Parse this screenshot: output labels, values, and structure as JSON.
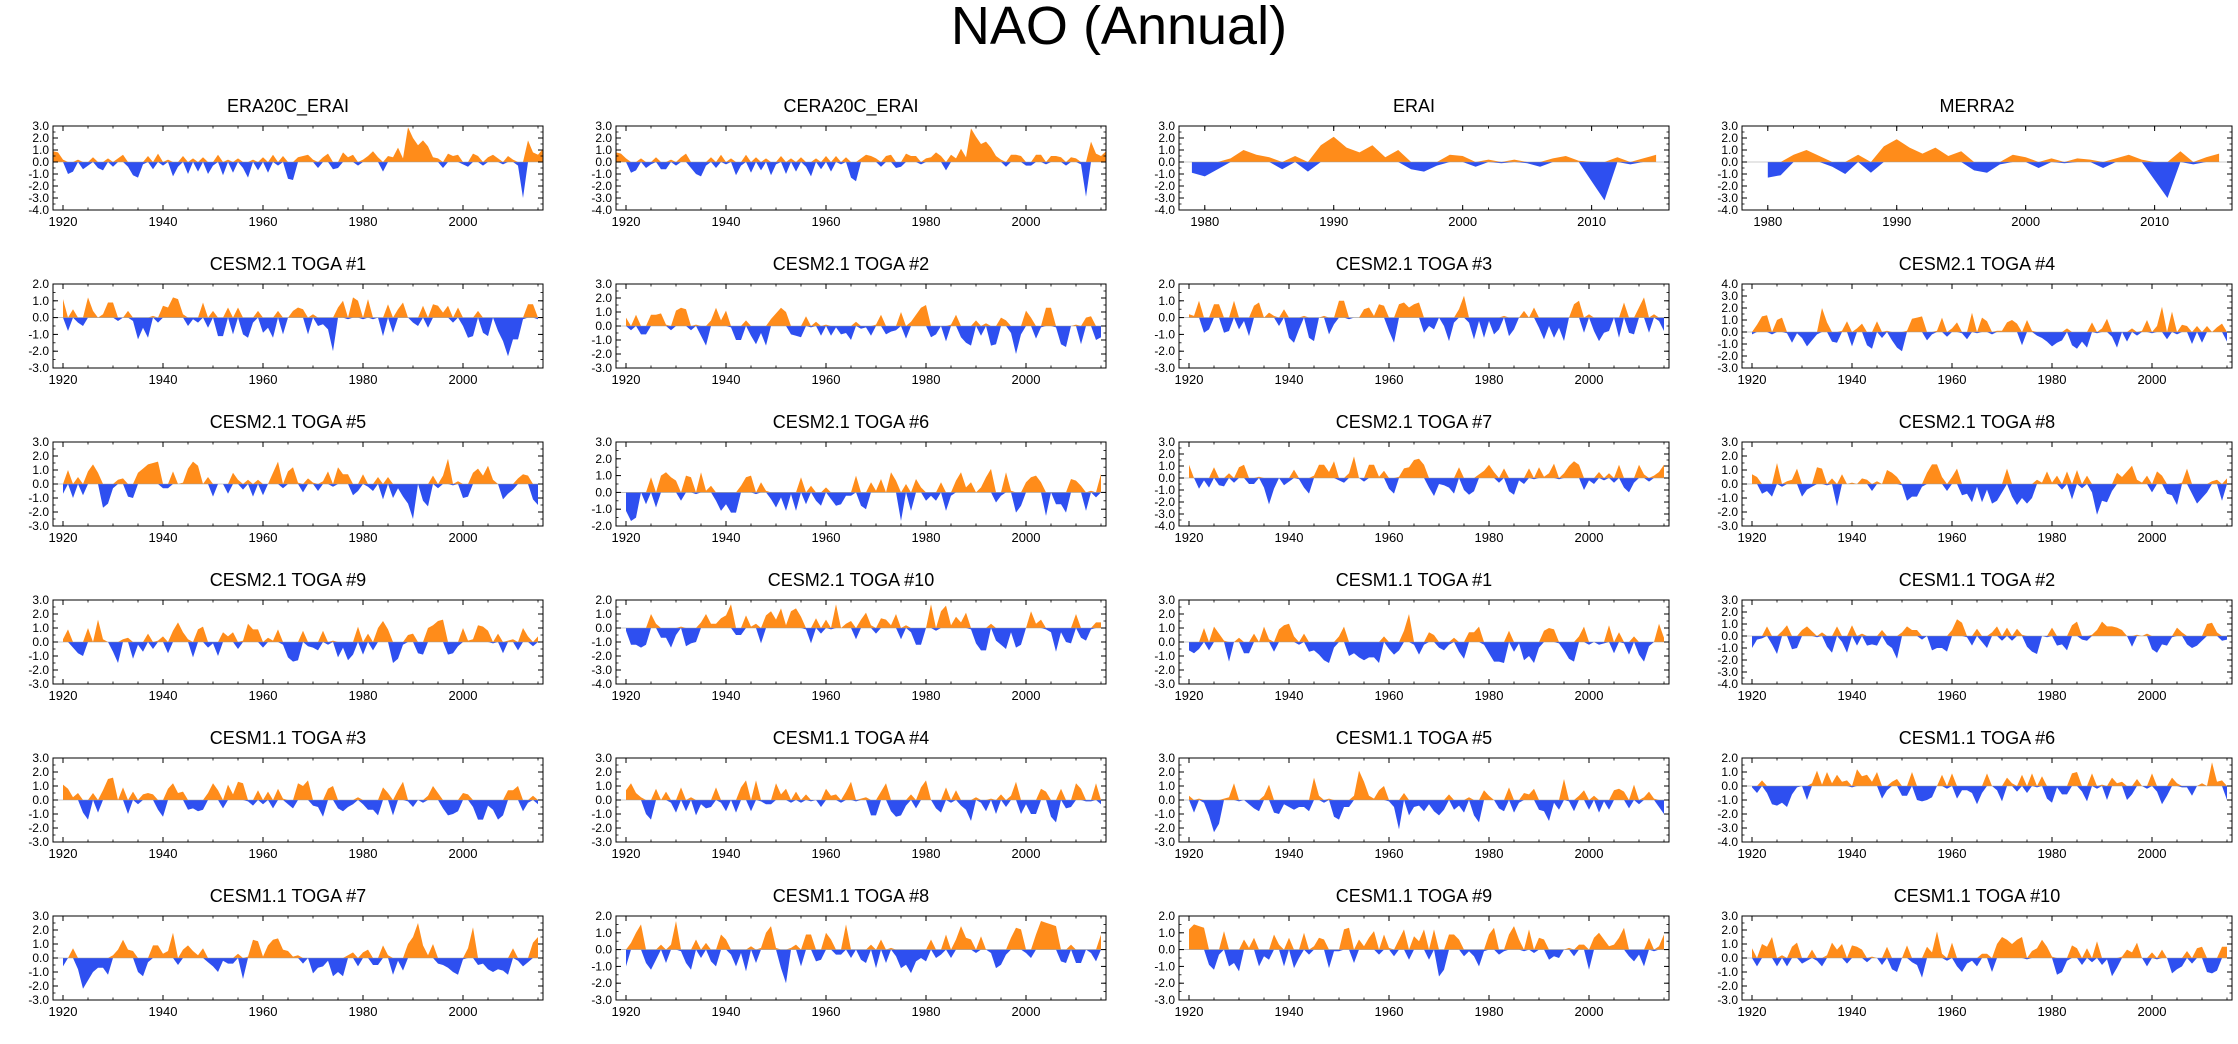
{
  "figure": {
    "title": "NAO (Annual)"
  },
  "colors": {
    "positive": "#ff8c1a",
    "negative": "#2e4ff0",
    "axis": "#000000"
  },
  "chart_data": [
    {
      "type": "area",
      "title": "ERA20C_ERAI",
      "xlim": [
        1918,
        2016
      ],
      "ylim": [
        -4,
        3
      ],
      "yticks": [
        "3.0",
        "2.0",
        "1.0",
        "0.0",
        "-1.0",
        "-2.0",
        "-3.0",
        "-4.0"
      ],
      "xticks": [
        1920,
        1940,
        1960,
        1980,
        2000
      ],
      "x_start": 1918,
      "values": [
        0.9,
        0.8,
        0.2,
        -1.0,
        -0.8,
        0.2,
        -0.6,
        -0.3,
        0.4,
        -0.5,
        -0.7,
        0.3,
        -0.4,
        0.3,
        0.6,
        -0.4,
        -1.1,
        -1.3,
        -0.2,
        0.5,
        -0.6,
        0.7,
        -0.3,
        0.2,
        -1.2,
        -0.4,
        0.5,
        -1.0,
        0.3,
        -0.8,
        0.4,
        -1.0,
        -0.3,
        0.6,
        -1.1,
        0.2,
        -0.9,
        0.3,
        -0.5,
        -1.3,
        0.2,
        -0.7,
        0.4,
        -0.9,
        0.6,
        -0.3,
        0.5,
        -1.4,
        -1.5,
        0.4,
        0.5,
        0.6,
        0.2,
        -0.5,
        0.4,
        0.7,
        -0.6,
        -0.5,
        0.8,
        0.4,
        0.6,
        -0.3,
        0.2,
        0.5,
        0.9,
        0.4,
        -0.8,
        0.5,
        0.4,
        1.2,
        0.3,
        2.9,
        2.0,
        1.4,
        1.8,
        1.3,
        0.4,
        0.3,
        -0.5,
        0.7,
        0.5,
        0.6,
        -0.2,
        -0.4,
        0.7,
        0.5,
        -0.3,
        0.4,
        0.6,
        0.3,
        -0.2,
        0.5,
        0.2,
        -0.3,
        -3.0,
        1.8,
        0.8,
        0.6,
        1.1
      ]
    },
    {
      "type": "area",
      "title": "CERA20C_ERAI",
      "xlim": [
        1918,
        2016
      ],
      "ylim": [
        -4,
        3
      ],
      "yticks": [
        "3.0",
        "2.0",
        "1.0",
        "0.0",
        "-1.0",
        "-2.0",
        "-3.0",
        "-4.0"
      ],
      "xticks": [
        1920,
        1940,
        1960,
        1980,
        2000
      ],
      "x_start": 1918,
      "values": [
        0.8,
        0.7,
        0.3,
        -0.9,
        -0.7,
        0.3,
        -0.5,
        -0.2,
        0.4,
        -0.6,
        -0.6,
        0.2,
        -0.3,
        0.4,
        0.7,
        -0.5,
        -1.0,
        -1.2,
        -0.3,
        0.4,
        -0.5,
        0.6,
        -0.2,
        0.3,
        -1.1,
        -0.3,
        0.6,
        -0.9,
        0.4,
        -0.7,
        0.3,
        -1.1,
        -0.2,
        0.5,
        -1.0,
        0.3,
        -0.8,
        0.4,
        -0.4,
        -1.2,
        0.3,
        -0.6,
        0.5,
        -0.8,
        0.5,
        -0.2,
        0.4,
        -1.3,
        -1.6,
        0.3,
        0.6,
        0.5,
        0.3,
        -0.4,
        0.5,
        0.6,
        -0.5,
        -0.4,
        0.7,
        0.5,
        0.5,
        -0.2,
        0.3,
        0.4,
        0.8,
        0.5,
        -0.7,
        0.6,
        0.3,
        1.1,
        0.4,
        2.8,
        2.1,
        1.5,
        1.7,
        1.2,
        0.5,
        0.2,
        -0.4,
        0.6,
        0.6,
        0.5,
        -0.3,
        -0.3,
        0.6,
        0.6,
        -0.2,
        0.5,
        0.5,
        0.4,
        -0.3,
        0.4,
        0.3,
        -0.2,
        -2.9,
        1.7,
        0.7,
        0.5,
        0.9
      ]
    },
    {
      "type": "area",
      "title": "ERAI",
      "xlim": [
        1978,
        2016
      ],
      "ylim": [
        -4,
        3
      ],
      "yticks": [
        "3.0",
        "2.0",
        "1.0",
        "0.0",
        "-1.0",
        "-2.0",
        "-3.0",
        "-4.0"
      ],
      "xticks": [
        1980,
        1990,
        2000,
        2010
      ],
      "x_start": 1979,
      "values": [
        -0.9,
        -1.2,
        -0.6,
        0.3,
        1.0,
        0.6,
        0.4,
        -0.6,
        0.5,
        -0.8,
        1.4,
        2.1,
        1.2,
        0.8,
        1.4,
        0.4,
        1.0,
        -0.6,
        -0.8,
        -0.3,
        0.6,
        0.5,
        -0.4,
        0.2,
        -0.1,
        0.2,
        -0.1,
        -0.4,
        0.3,
        0.5,
        0.1,
        -1.6,
        -3.2,
        0.4,
        -0.2,
        0.3,
        0.6
      ]
    },
    {
      "type": "area",
      "title": "MERRA2",
      "xlim": [
        1978,
        2016
      ],
      "ylim": [
        -4,
        3
      ],
      "yticks": [
        "3.0",
        "2.0",
        "1.0",
        "0.0",
        "-1.0",
        "-2.0",
        "-3.0",
        "-4.0"
      ],
      "xticks": [
        1980,
        1990,
        2000,
        2010
      ],
      "x_start": 1980,
      "values": [
        -1.3,
        -1.1,
        0.6,
        1.0,
        0.5,
        -0.4,
        -1.0,
        0.6,
        -0.9,
        1.3,
        1.9,
        1.2,
        0.7,
        1.2,
        0.5,
        0.9,
        -0.7,
        -0.9,
        -0.2,
        0.6,
        0.4,
        -0.5,
        0.3,
        -0.1,
        0.3,
        0.2,
        -0.5,
        0.3,
        0.6,
        0.2,
        -1.5,
        -3.0,
        0.9,
        -0.2,
        0.4,
        0.7
      ]
    },
    {
      "type": "area",
      "title": "CESM2.1 TOGA #1",
      "xlim": [
        1918,
        2016
      ],
      "ylim": [
        -3,
        2
      ],
      "yticks": [
        "2.0",
        "1.0",
        "0.0",
        "-1.0",
        "-2.0",
        "-3.0"
      ],
      "xticks": [
        1920,
        1940,
        1960,
        1980,
        2000
      ],
      "x_start": 1920,
      "seed": 11
    },
    {
      "type": "area",
      "title": "CESM2.1 TOGA #2",
      "xlim": [
        1918,
        2016
      ],
      "ylim": [
        -3,
        3
      ],
      "yticks": [
        "3.0",
        "2.0",
        "1.0",
        "0.0",
        "-1.0",
        "-2.0",
        "-3.0"
      ],
      "xticks": [
        1920,
        1940,
        1960,
        1980,
        2000
      ],
      "x_start": 1920,
      "seed": 12
    },
    {
      "type": "area",
      "title": "CESM2.1 TOGA #3",
      "xlim": [
        1918,
        2016
      ],
      "ylim": [
        -3,
        2
      ],
      "yticks": [
        "2.0",
        "1.0",
        "0.0",
        "-1.0",
        "-2.0",
        "-3.0"
      ],
      "xticks": [
        1920,
        1940,
        1960,
        1980,
        2000
      ],
      "x_start": 1920,
      "seed": 13
    },
    {
      "type": "area",
      "title": "CESM2.1 TOGA #4",
      "xlim": [
        1918,
        2016
      ],
      "ylim": [
        -3,
        4
      ],
      "yticks": [
        "4.0",
        "3.0",
        "2.0",
        "1.0",
        "0.0",
        "-1.0",
        "-2.0",
        "-3.0"
      ],
      "xticks": [
        1920,
        1940,
        1960,
        1980,
        2000
      ],
      "x_start": 1920,
      "seed": 14
    },
    {
      "type": "area",
      "title": "CESM2.1 TOGA #5",
      "xlim": [
        1918,
        2016
      ],
      "ylim": [
        -3,
        3
      ],
      "yticks": [
        "3.0",
        "2.0",
        "1.0",
        "0.0",
        "-1.0",
        "-2.0",
        "-3.0"
      ],
      "xticks": [
        1920,
        1940,
        1960,
        1980,
        2000
      ],
      "x_start": 1920,
      "seed": 15
    },
    {
      "type": "area",
      "title": "CESM2.1 TOGA #6",
      "xlim": [
        1918,
        2016
      ],
      "ylim": [
        -2,
        3
      ],
      "yticks": [
        "3.0",
        "2.0",
        "1.0",
        "0.0",
        "-1.0",
        "-2.0"
      ],
      "xticks": [
        1920,
        1940,
        1960,
        1980,
        2000
      ],
      "x_start": 1920,
      "seed": 16
    },
    {
      "type": "area",
      "title": "CESM2.1 TOGA #7",
      "xlim": [
        1918,
        2016
      ],
      "ylim": [
        -4,
        3
      ],
      "yticks": [
        "3.0",
        "2.0",
        "1.0",
        "0.0",
        "-1.0",
        "-2.0",
        "-3.0",
        "-4.0"
      ],
      "xticks": [
        1920,
        1940,
        1960,
        1980,
        2000
      ],
      "x_start": 1920,
      "seed": 17
    },
    {
      "type": "area",
      "title": "CESM2.1 TOGA #8",
      "xlim": [
        1918,
        2016
      ],
      "ylim": [
        -3,
        3
      ],
      "yticks": [
        "3.0",
        "2.0",
        "1.0",
        "0.0",
        "-1.0",
        "-2.0",
        "-3.0"
      ],
      "xticks": [
        1920,
        1940,
        1960,
        1980,
        2000
      ],
      "x_start": 1920,
      "seed": 18
    },
    {
      "type": "area",
      "title": "CESM2.1 TOGA #9",
      "xlim": [
        1918,
        2016
      ],
      "ylim": [
        -3,
        3
      ],
      "yticks": [
        "3.0",
        "2.0",
        "1.0",
        "0.0",
        "-1.0",
        "-2.0",
        "-3.0"
      ],
      "xticks": [
        1920,
        1940,
        1960,
        1980,
        2000
      ],
      "x_start": 1920,
      "seed": 19
    },
    {
      "type": "area",
      "title": "CESM2.1 TOGA #10",
      "xlim": [
        1918,
        2016
      ],
      "ylim": [
        -4,
        2
      ],
      "yticks": [
        "2.0",
        "1.0",
        "0.0",
        "-1.0",
        "-2.0",
        "-3.0",
        "-4.0"
      ],
      "xticks": [
        1920,
        1940,
        1960,
        1980,
        2000
      ],
      "x_start": 1920,
      "seed": 20
    },
    {
      "type": "area",
      "title": "CESM1.1 TOGA #1",
      "xlim": [
        1918,
        2016
      ],
      "ylim": [
        -3,
        3
      ],
      "yticks": [
        "3.0",
        "2.0",
        "1.0",
        "0.0",
        "-1.0",
        "-2.0",
        "-3.0"
      ],
      "xticks": [
        1920,
        1940,
        1960,
        1980,
        2000
      ],
      "x_start": 1920,
      "seed": 21
    },
    {
      "type": "area",
      "title": "CESM1.1 TOGA #2",
      "xlim": [
        1918,
        2016
      ],
      "ylim": [
        -4,
        3
      ],
      "yticks": [
        "3.0",
        "2.0",
        "1.0",
        "0.0",
        "-1.0",
        "-2.0",
        "-3.0",
        "-4.0"
      ],
      "xticks": [
        1920,
        1940,
        1960,
        1980,
        2000
      ],
      "x_start": 1920,
      "seed": 22
    },
    {
      "type": "area",
      "title": "CESM1.1 TOGA #3",
      "xlim": [
        1918,
        2016
      ],
      "ylim": [
        -3,
        3
      ],
      "yticks": [
        "3.0",
        "2.0",
        "1.0",
        "0.0",
        "-1.0",
        "-2.0",
        "-3.0"
      ],
      "xticks": [
        1920,
        1940,
        1960,
        1980,
        2000
      ],
      "x_start": 1920,
      "seed": 23
    },
    {
      "type": "area",
      "title": "CESM1.1 TOGA #4",
      "xlim": [
        1918,
        2016
      ],
      "ylim": [
        -3,
        3
      ],
      "yticks": [
        "3.0",
        "2.0",
        "1.0",
        "0.0",
        "-1.0",
        "-2.0",
        "-3.0"
      ],
      "xticks": [
        1920,
        1940,
        1960,
        1980,
        2000
      ],
      "x_start": 1920,
      "seed": 24
    },
    {
      "type": "area",
      "title": "CESM1.1 TOGA #5",
      "xlim": [
        1918,
        2016
      ],
      "ylim": [
        -3,
        3
      ],
      "yticks": [
        "3.0",
        "2.0",
        "1.0",
        "0.0",
        "-1.0",
        "-2.0",
        "-3.0"
      ],
      "xticks": [
        1920,
        1940,
        1960,
        1980,
        2000
      ],
      "x_start": 1920,
      "seed": 25
    },
    {
      "type": "area",
      "title": "CESM1.1 TOGA #6",
      "xlim": [
        1918,
        2016
      ],
      "ylim": [
        -4,
        2
      ],
      "yticks": [
        "2.0",
        "1.0",
        "0.0",
        "-1.0",
        "-2.0",
        "-3.0",
        "-4.0"
      ],
      "xticks": [
        1920,
        1940,
        1960,
        1980,
        2000
      ],
      "x_start": 1920,
      "seed": 26
    },
    {
      "type": "area",
      "title": "CESM1.1 TOGA #7",
      "xlim": [
        1918,
        2016
      ],
      "ylim": [
        -3,
        3
      ],
      "yticks": [
        "3.0",
        "2.0",
        "1.0",
        "0.0",
        "-1.0",
        "-2.0",
        "-3.0"
      ],
      "xticks": [
        1920,
        1940,
        1960,
        1980,
        2000
      ],
      "x_start": 1920,
      "seed": 27
    },
    {
      "type": "area",
      "title": "CESM1.1 TOGA #8",
      "xlim": [
        1918,
        2016
      ],
      "ylim": [
        -3,
        2
      ],
      "yticks": [
        "2.0",
        "1.0",
        "0.0",
        "-1.0",
        "-2.0",
        "-3.0"
      ],
      "xticks": [
        1920,
        1940,
        1960,
        1980,
        2000
      ],
      "x_start": 1920,
      "seed": 28
    },
    {
      "type": "area",
      "title": "CESM1.1 TOGA #9",
      "xlim": [
        1918,
        2016
      ],
      "ylim": [
        -3,
        2
      ],
      "yticks": [
        "2.0",
        "1.0",
        "0.0",
        "-1.0",
        "-2.0",
        "-3.0"
      ],
      "xticks": [
        1920,
        1940,
        1960,
        1980,
        2000
      ],
      "x_start": 1920,
      "seed": 29
    },
    {
      "type": "area",
      "title": "CESM1.1 TOGA #10",
      "xlim": [
        1918,
        2016
      ],
      "ylim": [
        -3,
        3
      ],
      "yticks": [
        "3.0",
        "2.0",
        "1.0",
        "0.0",
        "-1.0",
        "-2.0",
        "-3.0"
      ],
      "xticks": [
        1920,
        1940,
        1960,
        1980,
        2000
      ],
      "x_start": 1920,
      "seed": 30
    }
  ]
}
